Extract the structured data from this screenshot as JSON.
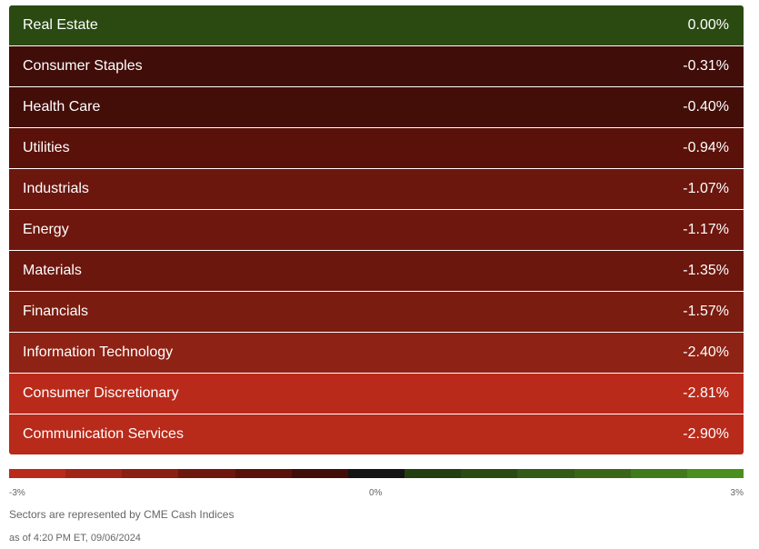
{
  "chart_data": {
    "type": "heatmap",
    "title": "",
    "categories": [
      "Real Estate",
      "Consumer Staples",
      "Health Care",
      "Utilities",
      "Industrials",
      "Energy",
      "Materials",
      "Financials",
      "Information Technology",
      "Consumer Discretionary",
      "Communication Services"
    ],
    "values": [
      0.0,
      -0.31,
      -0.4,
      -0.94,
      -1.07,
      -1.17,
      -1.35,
      -1.57,
      -2.4,
      -2.81,
      -2.9
    ],
    "value_labels": [
      "0.00%",
      "-0.31%",
      "-0.40%",
      "-0.94%",
      "-1.07%",
      "-1.17%",
      "-1.35%",
      "-1.57%",
      "-2.40%",
      "-2.81%",
      "-2.90%"
    ],
    "row_colors": [
      "#2b4a12",
      "#410d08",
      "#430d08",
      "#5a110a",
      "#6b170e",
      "#6e170e",
      "#6b170e",
      "#7a1c10",
      "#8e2214",
      "#b92a1a",
      "#b82a1a"
    ],
    "scale": {
      "min": -3,
      "max": 3,
      "min_label": "-3%",
      "mid_label": "0%",
      "max_label": "3%",
      "colors": [
        "#b92a1a",
        "#a12418",
        "#8a1f12",
        "#6e170e",
        "#5a110a",
        "#410d08",
        "#141414",
        "#233e0f",
        "#2b4a12",
        "#335a16",
        "#3a6618",
        "#417a1b",
        "#4a8e20"
      ]
    }
  },
  "footer": {
    "source_note": "Sectors are represented by CME Cash Indices",
    "timestamp": "as of 4:20 PM ET, 09/06/2024"
  }
}
